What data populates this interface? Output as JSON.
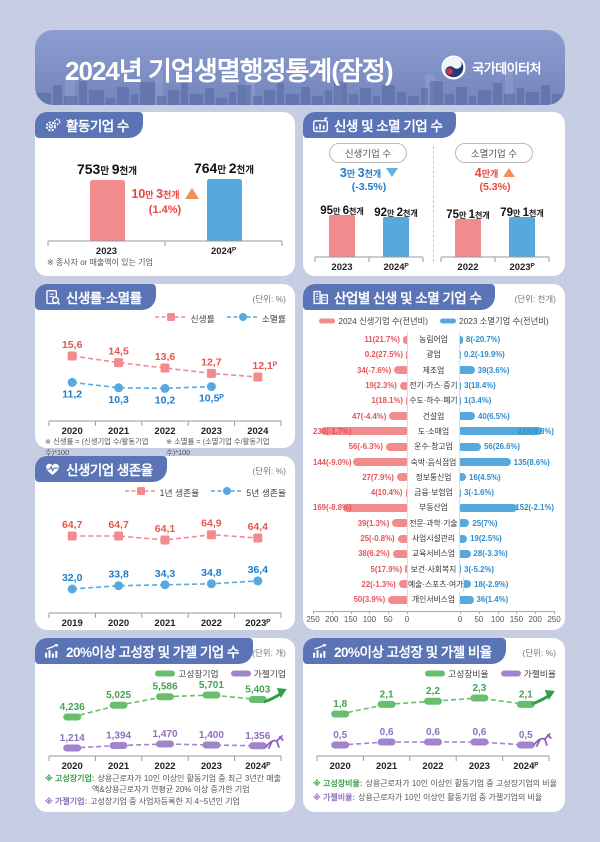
{
  "banner": {
    "title": "2024년 기업생멸행정통계(잠정)",
    "agency": "국가데이터처"
  },
  "chart_data": [
    {
      "type": "bar",
      "title": "활동기업 수",
      "categories": [
        "2023",
        "2024ᴾ"
      ],
      "values": [
        753.9,
        764.2
      ],
      "value_labels": [
        "753만 9천개",
        "764만 2천개"
      ],
      "bar_colors": [
        "#f28b8d",
        "#57a9dd"
      ],
      "change": {
        "label": "10만 3천개",
        "pct": "(1.4%)",
        "direction": "up"
      },
      "footnote": "※ 종사자 or 매출액이 있는 기업"
    },
    {
      "type": "bar",
      "title": "신생 및 소멸 기업 수",
      "groups": [
        {
          "name": "신생기업 수",
          "change": {
            "label": "3만 3천개",
            "pct": "(-3.5%)",
            "direction": "down"
          },
          "categories": [
            "2023",
            "2024ᴾ"
          ],
          "values": [
            95.6,
            92.2
          ],
          "value_labels": [
            "95만 6천개",
            "92만 2천개"
          ]
        },
        {
          "name": "소멸기업 수",
          "change": {
            "label": "4만개",
            "pct": "(5.3%)",
            "direction": "up"
          },
          "categories": [
            "2022",
            "2023ᴾ"
          ],
          "values": [
            75.1,
            79.1
          ],
          "value_labels": [
            "75만 1천개",
            "79만 1천개"
          ]
        }
      ]
    },
    {
      "type": "line",
      "title": "신생률·소멸률",
      "unit": "(단위: %)",
      "x": [
        "2020",
        "2021",
        "2022",
        "2023",
        "2024"
      ],
      "series": [
        {
          "name": "신생률",
          "values": [
            15.6,
            14.5,
            13.6,
            12.7,
            12.1
          ],
          "labels": [
            "15,6",
            "14,5",
            "13,6",
            "12,7",
            "12,1ᴾ"
          ]
        },
        {
          "name": "소멸률",
          "values": [
            11.2,
            10.3,
            10.2,
            10.5
          ],
          "labels": [
            "11,2",
            "10,3",
            "10,2",
            "10,5ᴾ"
          ]
        }
      ],
      "footnotes": [
        "※ 신생률 = (신생기업 수/활동기업 수)*100",
        "※ 소멸률 = (소멸기업 수/활동기업 수)*100"
      ]
    },
    {
      "type": "bar",
      "subtype": "tornado",
      "title": "산업별 신생 및 소멸 기업 수",
      "unit": "(단위: 천개)",
      "series": [
        {
          "name": "2024 신생기업 수(전년비)"
        },
        {
          "name": "2023 소멸기업 수(전년비)"
        }
      ],
      "categories": [
        "농림어업",
        "광업",
        "제조업",
        "전기·가스·증기",
        "수도·하수·폐기",
        "건설업",
        "도·소매업",
        "운수·창고업",
        "숙박·음식점업",
        "정보통신업",
        "금융·보험업",
        "부동산업",
        "전문·과학·기술",
        "사업시설관리",
        "교육서비스업",
        "보건·사회복지",
        "예술·스포츠·여가",
        "개인서비스업"
      ],
      "birth_values": [
        11,
        0.2,
        34,
        19,
        1,
        47,
        230,
        56,
        144,
        27,
        4,
        169,
        39,
        25,
        38,
        5,
        22,
        50
      ],
      "birth_labels": [
        "11(21.7%)",
        "0.2(27.5%)",
        "34(-7.6%)",
        "19(2.3%)",
        "1(18.1%)",
        "47(-4.4%)",
        "230(-1.7%)",
        "56(-6.3%)",
        "144(-9.0%)",
        "27(7.9%)",
        "4(10.4%)",
        "169(-8.8%)",
        "39(1.3%)",
        "25(-0.8%)",
        "38(6.2%)",
        "5(17.9%)",
        "22(-1.3%)",
        "50(3.9%)"
      ],
      "death_values": [
        8,
        0.2,
        39,
        3,
        1,
        40,
        218,
        56,
        135,
        16,
        3,
        152,
        25,
        19,
        28,
        3,
        18,
        36
      ],
      "death_labels": [
        "8(-20.7%)",
        "0.2(-19.9%)",
        "39(3.6%)",
        "3(18.4%)",
        "1(3.4%)",
        "40(6.5%)",
        "218(8.8%)",
        "56(26.6%)",
        "135(8.6%)",
        "16(4.5%)",
        "3(-1.6%)",
        "152(-2.1%)",
        "25(7%)",
        "19(2.5%)",
        "28(-3.3%)",
        "3(-5.2%)",
        "18(-2.9%)",
        "36(1.4%)"
      ],
      "axis_left": [
        "250",
        "200",
        "150",
        "100",
        "50",
        "0"
      ],
      "axis_right": [
        "0",
        "50",
        "100",
        "150",
        "200",
        "250"
      ],
      "axis_max": 250
    },
    {
      "type": "line",
      "title": "신생기업 생존율",
      "unit": "(단위: %)",
      "x": [
        "2019",
        "2020",
        "2021",
        "2022",
        "2023ᴾ"
      ],
      "series": [
        {
          "name": "1년 생존율",
          "values": [
            64.7,
            64.7,
            64.1,
            64.9,
            64.4
          ],
          "labels": [
            "64,7",
            "64,7",
            "64,1",
            "64,9",
            "64,4"
          ]
        },
        {
          "name": "5년 생존율",
          "values": [
            32.0,
            33.8,
            34.3,
            34.8,
            36.4
          ],
          "labels": [
            "32,0",
            "33,8",
            "34,3",
            "34,8",
            "36,4"
          ]
        }
      ]
    },
    {
      "type": "line",
      "title": "20%이상 고성장 및 가젤 기업 수",
      "unit": "(단위: 개)",
      "x": [
        "2020",
        "2021",
        "2022",
        "2023",
        "2024ᴾ"
      ],
      "series": [
        {
          "name": "고성장기업",
          "values": [
            4236,
            5025,
            5586,
            5701,
            5403
          ],
          "labels": [
            "4,236",
            "5,025",
            "5,586",
            "5,701",
            "5,403"
          ]
        },
        {
          "name": "가젤기업",
          "values": [
            1214,
            1394,
            1470,
            1400,
            1356
          ],
          "labels": [
            "1,214",
            "1,394",
            "1,470",
            "1,400",
            "1,356"
          ]
        }
      ],
      "footnotes": [
        {
          "lead": "※ 고성장기업:",
          "text": "상용근로자가 10인 이상인 활동기업 중 최근 3년간 매출액&상용근로자가 연평균 20% 이상 증가한 기업"
        },
        {
          "lead": "※ 가젤기업:",
          "text": "고성장기업 중 사업자등록한 지 4~5년인 기업"
        }
      ]
    },
    {
      "type": "line",
      "title": "20%이상 고성장 및 가젤 비율",
      "unit": "(단위: %)",
      "x": [
        "2020",
        "2021",
        "2022",
        "2023",
        "2024ᴾ"
      ],
      "series": [
        {
          "name": "고성장비율",
          "values": [
            1.8,
            2.1,
            2.2,
            2.3,
            2.1
          ],
          "labels": [
            "1,8",
            "2,1",
            "2,2",
            "2,3",
            "2,1"
          ]
        },
        {
          "name": "가젤비율",
          "values": [
            0.5,
            0.6,
            0.6,
            0.6,
            0.5
          ],
          "labels": [
            "0,5",
            "0,6",
            "0,6",
            "0,6",
            "0,5"
          ]
        }
      ],
      "footnotes": [
        {
          "lead": "※ 고성장비율:",
          "text": "상용근로자가 10인 이상인 활동기업 중 고성장기업의 비율"
        },
        {
          "lead": "※ 가젤비율:",
          "text": "상용근로자가 10인 이상인 활동기업 중 가젤기업의 비율"
        }
      ]
    }
  ]
}
